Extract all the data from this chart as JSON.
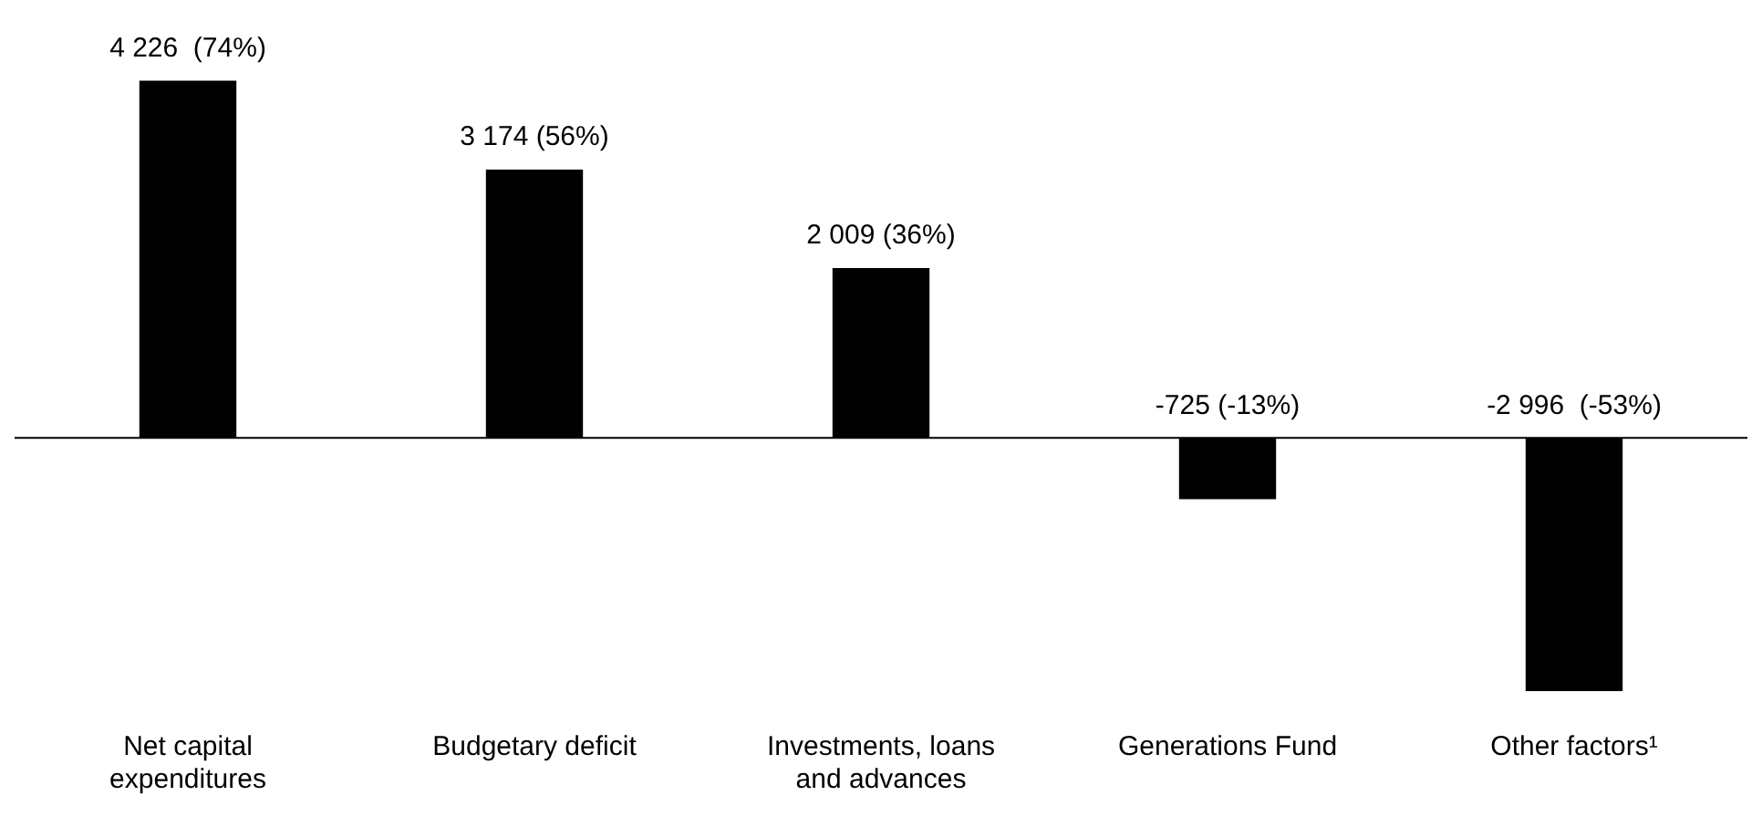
{
  "chart_data": {
    "type": "bar",
    "categories": [
      "Net capital expenditures",
      "Budgetary deficit",
      "Investments, loans and advances",
      "Generations Fund",
      "Other factors¹"
    ],
    "values": [
      4226,
      3174,
      2009,
      -725,
      -2996
    ],
    "value_labels": [
      "4 226  (74%)",
      "3 174 (56%)",
      "2 009 (36%)",
      "-725 (-13%)",
      "-2 996  (-53%)"
    ],
    "color": "#000000",
    "legend": false
  }
}
